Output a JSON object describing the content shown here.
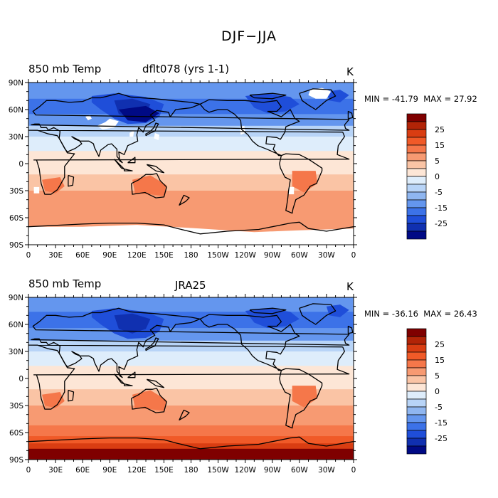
{
  "title": "DJF−JJA",
  "panels": [
    {
      "variable": "850 mb Temp",
      "source": "dflt078 (yrs 1-1)",
      "units": "K",
      "stats": {
        "min_label": "MIN =",
        "min": "-41.79",
        "max_label": "MAX =",
        "max": "27.92"
      }
    },
    {
      "variable": "850 mb Temp",
      "source": "JRA25",
      "units": "K",
      "stats": {
        "min_label": "MIN =",
        "min": "-36.16",
        "max_label": "MAX =",
        "max": "26.43"
      }
    }
  ],
  "map": {
    "lat_ticks": [
      "90N",
      "60N",
      "30N",
      "0",
      "30S",
      "60S",
      "90S"
    ],
    "lon_ticks": [
      "0",
      "30E",
      "60E",
      "90E",
      "120E",
      "150E",
      "180",
      "150W",
      "120W",
      "90W",
      "60W",
      "30W",
      "0"
    ]
  },
  "colorbar": {
    "labels": [
      "25",
      "15",
      "5",
      "0",
      "-5",
      "-15",
      "-25"
    ],
    "colors": [
      "#7f0000",
      "#b22407",
      "#d93d12",
      "#f05a28",
      "#f5774a",
      "#f79a72",
      "#fac4a5",
      "#fde6d6",
      "#deedfb",
      "#b8d4f7",
      "#8fb6f0",
      "#6496ee",
      "#3c72e8",
      "#1f4ed9",
      "#1030b0",
      "#000a85"
    ]
  }
}
